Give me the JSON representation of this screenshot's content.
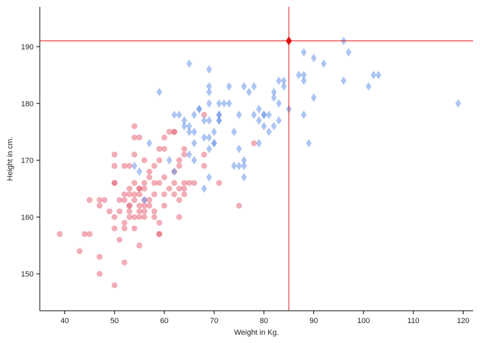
{
  "colors": {
    "series_female": "#e8697a",
    "series_male": "#6a96e8",
    "crosshair": "#e01010",
    "axis": "#000000"
  },
  "chart_data": {
    "type": "scatter",
    "xlabel": "Weight in Kg.",
    "ylabel": "Height in cm.",
    "xlim": [
      35,
      122
    ],
    "ylim": [
      143.5,
      197
    ],
    "xticks": [
      40,
      50,
      60,
      70,
      80,
      90,
      100,
      110,
      120
    ],
    "yticks": [
      150,
      160,
      170,
      180,
      190
    ],
    "grid": false,
    "legend": "none",
    "crosshair": {
      "x": 85,
      "y": 191
    },
    "series": [
      {
        "marker": "circle",
        "color": "#e8697a",
        "points": [
          [
            39,
            157
          ],
          [
            43,
            154
          ],
          [
            44,
            157
          ],
          [
            45,
            157
          ],
          [
            45,
            163
          ],
          [
            47,
            163
          ],
          [
            47,
            162
          ],
          [
            47,
            153
          ],
          [
            47,
            150
          ],
          [
            48,
            163
          ],
          [
            49,
            161
          ],
          [
            50,
            171
          ],
          [
            50,
            169
          ],
          [
            50,
            166
          ],
          [
            50,
            166
          ],
          [
            50,
            160
          ],
          [
            50,
            158
          ],
          [
            50,
            148
          ],
          [
            51,
            163
          ],
          [
            51,
            161
          ],
          [
            51,
            156
          ],
          [
            52,
            169
          ],
          [
            52,
            164
          ],
          [
            52,
            163
          ],
          [
            52,
            159
          ],
          [
            52,
            158
          ],
          [
            52,
            152
          ],
          [
            53,
            169
          ],
          [
            53,
            165
          ],
          [
            53,
            164
          ],
          [
            53,
            162
          ],
          [
            53,
            162
          ],
          [
            53,
            161
          ],
          [
            53,
            160
          ],
          [
            54,
            176
          ],
          [
            54,
            174
          ],
          [
            54,
            171
          ],
          [
            54,
            166
          ],
          [
            54,
            164
          ],
          [
            54,
            163
          ],
          [
            54,
            160
          ],
          [
            54,
            158
          ],
          [
            55,
            174
          ],
          [
            55,
            165
          ],
          [
            55,
            165
          ],
          [
            55,
            164
          ],
          [
            55,
            162
          ],
          [
            55,
            161
          ],
          [
            55,
            160
          ],
          [
            55,
            155
          ],
          [
            56,
            170
          ],
          [
            56,
            166
          ],
          [
            56,
            165
          ],
          [
            56,
            163
          ],
          [
            56,
            162
          ],
          [
            56,
            161
          ],
          [
            56,
            160
          ],
          [
            57,
            168
          ],
          [
            57,
            167
          ],
          [
            57,
            163
          ],
          [
            57,
            162
          ],
          [
            58,
            169
          ],
          [
            58,
            166
          ],
          [
            58,
            164
          ],
          [
            58,
            161
          ],
          [
            58,
            160
          ],
          [
            59,
            172
          ],
          [
            59,
            170
          ],
          [
            59,
            166
          ],
          [
            59,
            159
          ],
          [
            59,
            157
          ],
          [
            59,
            157
          ],
          [
            60,
            174
          ],
          [
            60,
            172
          ],
          [
            60,
            167
          ],
          [
            60,
            164
          ],
          [
            60,
            162
          ],
          [
            61,
            175
          ],
          [
            61,
            165
          ],
          [
            62,
            175
          ],
          [
            62,
            175
          ],
          [
            62,
            168
          ],
          [
            62,
            166
          ],
          [
            62,
            164
          ],
          [
            63,
            170
          ],
          [
            63,
            169
          ],
          [
            63,
            165
          ],
          [
            63,
            163
          ],
          [
            63,
            160
          ],
          [
            64,
            172
          ],
          [
            64,
            171
          ],
          [
            64,
            166
          ],
          [
            64,
            165
          ],
          [
            64,
            164
          ],
          [
            65,
            166
          ],
          [
            66,
            166
          ],
          [
            68,
            178
          ],
          [
            68,
            171
          ],
          [
            68,
            169
          ],
          [
            71,
            166
          ],
          [
            75,
            162
          ],
          [
            78,
            173
          ]
        ]
      },
      {
        "marker": "diamond",
        "color": "#6a96e8",
        "points": [
          [
            54,
            169
          ],
          [
            55,
            168
          ],
          [
            56,
            163
          ],
          [
            57,
            173
          ],
          [
            59,
            182
          ],
          [
            61,
            170
          ],
          [
            62,
            178
          ],
          [
            62,
            168
          ],
          [
            63,
            178
          ],
          [
            64,
            177
          ],
          [
            64,
            176
          ],
          [
            65,
            187
          ],
          [
            65,
            176
          ],
          [
            65,
            175
          ],
          [
            65,
            171
          ],
          [
            66,
            178
          ],
          [
            66,
            175
          ],
          [
            66,
            173
          ],
          [
            66,
            170
          ],
          [
            67,
            179
          ],
          [
            67,
            179
          ],
          [
            68,
            177
          ],
          [
            68,
            174
          ],
          [
            68,
            165
          ],
          [
            69,
            186
          ],
          [
            69,
            183
          ],
          [
            69,
            182
          ],
          [
            69,
            180
          ],
          [
            69,
            177
          ],
          [
            69,
            174
          ],
          [
            69,
            172
          ],
          [
            69,
            167
          ],
          [
            70,
            175
          ],
          [
            70,
            173
          ],
          [
            70,
            173
          ],
          [
            71,
            180
          ],
          [
            71,
            178
          ],
          [
            71,
            178
          ],
          [
            71,
            177
          ],
          [
            71,
            177
          ],
          [
            72,
            180
          ],
          [
            73,
            183
          ],
          [
            73,
            180
          ],
          [
            74,
            175
          ],
          [
            74,
            169
          ],
          [
            75,
            178
          ],
          [
            75,
            172
          ],
          [
            75,
            169
          ],
          [
            76,
            183
          ],
          [
            76,
            170
          ],
          [
            76,
            169
          ],
          [
            76,
            167
          ],
          [
            77,
            182
          ],
          [
            78,
            183
          ],
          [
            78,
            178
          ],
          [
            79,
            179
          ],
          [
            79,
            177
          ],
          [
            79,
            173
          ],
          [
            80,
            178
          ],
          [
            80,
            178
          ],
          [
            80,
            176
          ],
          [
            81,
            178
          ],
          [
            81,
            175
          ],
          [
            82,
            182
          ],
          [
            82,
            181
          ],
          [
            82,
            176
          ],
          [
            83,
            184
          ],
          [
            83,
            180
          ],
          [
            83,
            177
          ],
          [
            84,
            184
          ],
          [
            84,
            183
          ],
          [
            85,
            179
          ],
          [
            87,
            185
          ],
          [
            88,
            189
          ],
          [
            88,
            185
          ],
          [
            88,
            184
          ],
          [
            88,
            178
          ],
          [
            89,
            173
          ],
          [
            90,
            188
          ],
          [
            90,
            181
          ],
          [
            92,
            187
          ],
          [
            96,
            191
          ],
          [
            96,
            184
          ],
          [
            97,
            189
          ],
          [
            101,
            183
          ],
          [
            102,
            185
          ],
          [
            103,
            185
          ],
          [
            119,
            180
          ]
        ]
      }
    ]
  }
}
